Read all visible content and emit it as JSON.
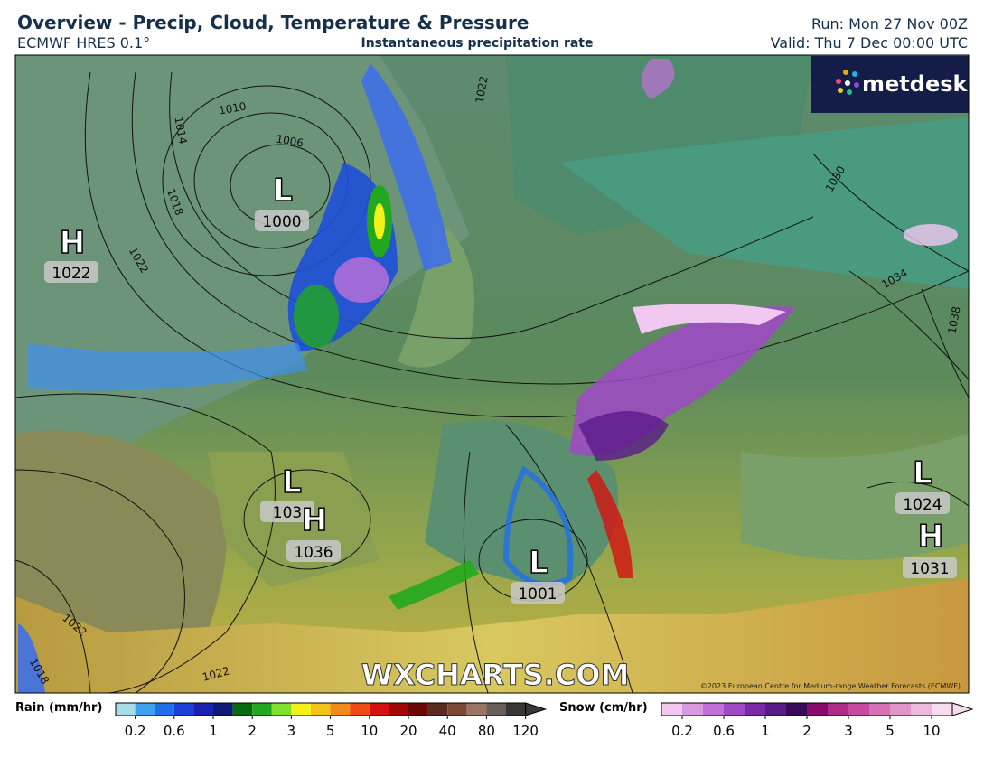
{
  "header": {
    "title": "Overview - Precip, Cloud, Temperature & Pressure",
    "model": "ECMWF HRES 0.1°",
    "subtitle": "Instantaneous precipitation rate",
    "run": "Run: Mon 27 Nov 00Z",
    "valid": "Valid: Thu 7 Dec 00:00 UTC"
  },
  "logo": "metdesk",
  "watermark": "WXCHARTS.COM",
  "copyright": "©2023 European Centre for Medium-range Weather Forecasts (ECMWF)",
  "pressure_centers": [
    {
      "type": "L",
      "value": "1000"
    },
    {
      "type": "H",
      "value": "1022"
    },
    {
      "type": "L",
      "value": "103"
    },
    {
      "type": "H",
      "value": "1036"
    },
    {
      "type": "L",
      "value": "1001"
    },
    {
      "type": "L",
      "value": "1024"
    },
    {
      "type": "H",
      "value": "1031"
    }
  ],
  "isobar_labels": [
    "1010",
    "1006",
    "1014",
    "1018",
    "1022",
    "1030",
    "1034",
    "1038",
    "1022",
    "1018",
    "1022",
    "1022"
  ],
  "rain_legend": {
    "title": "Rain (mm/hr)",
    "ticks": [
      "0.2",
      "0.6",
      "1",
      "2",
      "3",
      "5",
      "10",
      "20",
      "40",
      "80",
      "120"
    ],
    "colors": [
      "#a6dde8",
      "#3fa0f0",
      "#1f6fe8",
      "#1c3fd8",
      "#1a22b0",
      "#0f1a78",
      "#0a6a10",
      "#22a81e",
      "#7ee02a",
      "#f2f21a",
      "#f2c21a",
      "#f28a1a",
      "#ee4a14",
      "#d41010",
      "#a00808",
      "#6e0606",
      "#5a2a1e",
      "#7a4a36",
      "#9a7464",
      "#6a5e5a",
      "#3a3636"
    ]
  },
  "snow_legend": {
    "title": "Snow (cm/hr)",
    "ticks": [
      "0.2",
      "0.6",
      "1",
      "2",
      "3",
      "5",
      "10"
    ],
    "colors": [
      "#f0c8f0",
      "#d89ae0",
      "#c070d8",
      "#a048c8",
      "#7a2aa8",
      "#5a1a88",
      "#3a0a5a",
      "#8a0a6a",
      "#b02a8a",
      "#c84aa0",
      "#d870b8",
      "#e094c8",
      "#ecb8dc",
      "#f6dcee"
    ]
  }
}
